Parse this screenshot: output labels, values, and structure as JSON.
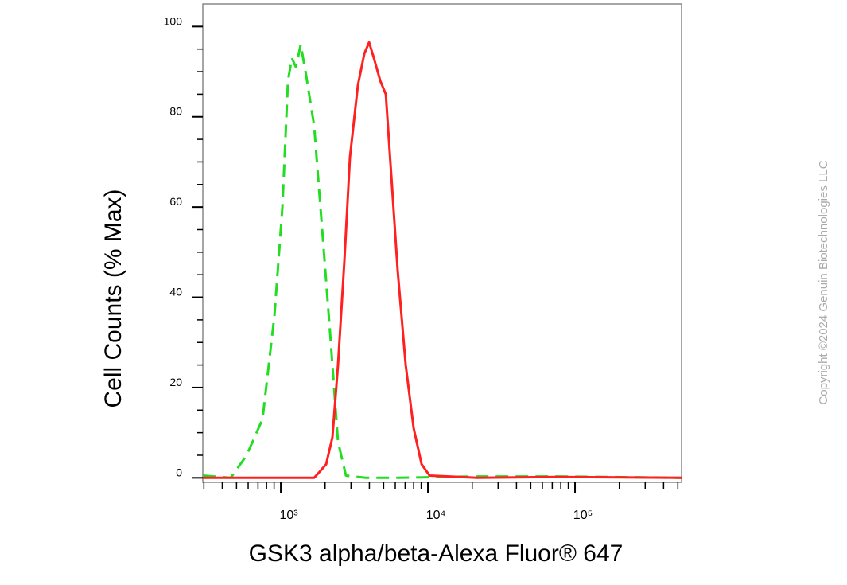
{
  "chart_data": {
    "type": "line",
    "xlabel": "GSK3 alpha/beta-Alexa Fluor® 647",
    "ylabel": "Cell Counts (% Max)",
    "watermark": "Copyright ©2024 Genuin Biotechnologies LLC",
    "xscale": "log",
    "xlim": [
      295,
      530000
    ],
    "ylim": [
      -1,
      105
    ],
    "xticks": [
      {
        "value": 1000,
        "label": "10³"
      },
      {
        "value": 10000,
        "label": "10⁴"
      },
      {
        "value": 100000,
        "label": "10⁵"
      }
    ],
    "minor_xticks": [
      300,
      400,
      500,
      600,
      700,
      800,
      900,
      2000,
      3000,
      4000,
      5000,
      6000,
      7000,
      8000,
      9000,
      20000,
      30000,
      40000,
      50000,
      60000,
      70000,
      80000,
      90000,
      200000,
      300000,
      400000,
      500000
    ],
    "yticks": [
      0,
      20,
      40,
      60,
      80,
      100
    ],
    "minor_yticks": [
      5,
      10,
      15,
      25,
      30,
      35,
      45,
      50,
      55,
      65,
      70,
      75,
      85,
      90,
      95
    ],
    "series": [
      {
        "color": "#22dd22",
        "dash": true,
        "x": [
          295,
          457,
          586,
          751,
          905,
          1025,
          1119,
          1190,
          1267,
          1365,
          1489,
          1686,
          1910,
          2164,
          2449,
          2774,
          3784,
          6229,
          21640,
          75100,
          530000
        ],
        "values": [
          0.5,
          0,
          5,
          13,
          36,
          60,
          88,
          93,
          91,
          96,
          89,
          78,
          55,
          32,
          8,
          0.5,
          0,
          0,
          0.3,
          0.3,
          0
        ]
      },
      {
        "color": "#ff2020",
        "dash": false,
        "x": [
          295,
          1686,
          1796,
          2033,
          2245,
          2449,
          2706,
          2950,
          3342,
          3697,
          3983,
          4290,
          4740,
          5172,
          5640,
          6229,
          7060,
          8000,
          9060,
          10260,
          21640,
          75100,
          530000
        ],
        "values": [
          0,
          0,
          1,
          3,
          9,
          25,
          48,
          71,
          87,
          94,
          96.5,
          93,
          88,
          85,
          67,
          46,
          25,
          11,
          3,
          0.5,
          0,
          0.2,
          0
        ]
      }
    ]
  }
}
